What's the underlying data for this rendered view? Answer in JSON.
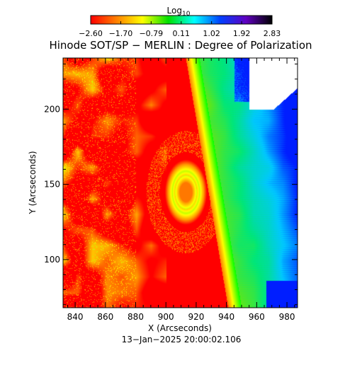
{
  "chart_data": {
    "type": "heatmap",
    "title": "Hinode SOT/SP − MERLIN : Degree of Polarization",
    "xlabel": "X (Arcseconds)",
    "ylabel": "Y (Arcseconds)",
    "timestamp": "13−Jan−2025 20:00:02.106",
    "xlim": [
      832,
      987
    ],
    "ylim": [
      68,
      234
    ],
    "x_ticks": [
      {
        "value": 840,
        "label": "840"
      },
      {
        "value": 860,
        "label": "860"
      },
      {
        "value": 880,
        "label": "880"
      },
      {
        "value": 900,
        "label": "900"
      },
      {
        "value": 920,
        "label": "920"
      },
      {
        "value": 940,
        "label": "940"
      },
      {
        "value": 960,
        "label": "960"
      },
      {
        "value": 980,
        "label": "980"
      }
    ],
    "y_ticks": [
      {
        "value": 100,
        "label": "100"
      },
      {
        "value": 150,
        "label": "150"
      },
      {
        "value": 200,
        "label": "200"
      }
    ],
    "colorbar": {
      "title": "Log",
      "title_subscript": "10",
      "range": [
        -2.6,
        2.83
      ],
      "ticks": [
        {
          "value": -2.6,
          "label": "−2.60"
        },
        {
          "value": -1.7,
          "label": "−1.70"
        },
        {
          "value": -0.79,
          "label": "−0.79"
        },
        {
          "value": 0.11,
          "label": "0.11"
        },
        {
          "value": 1.02,
          "label": "1.02"
        },
        {
          "value": 1.92,
          "label": "1.92"
        },
        {
          "value": 2.83,
          "label": "2.83"
        }
      ],
      "colors": [
        "#ff0000",
        "#ff8000",
        "#ffff00",
        "#00e000",
        "#00ffff",
        "#0040ff",
        "#6000c0",
        "#000000"
      ]
    },
    "features": {
      "limb_x_at_ymin": 944,
      "limb_x_at_ymax": 916,
      "spot_center": [
        913,
        145
      ],
      "offdisk_level": 0.45,
      "disk_level": -2.6
    }
  }
}
